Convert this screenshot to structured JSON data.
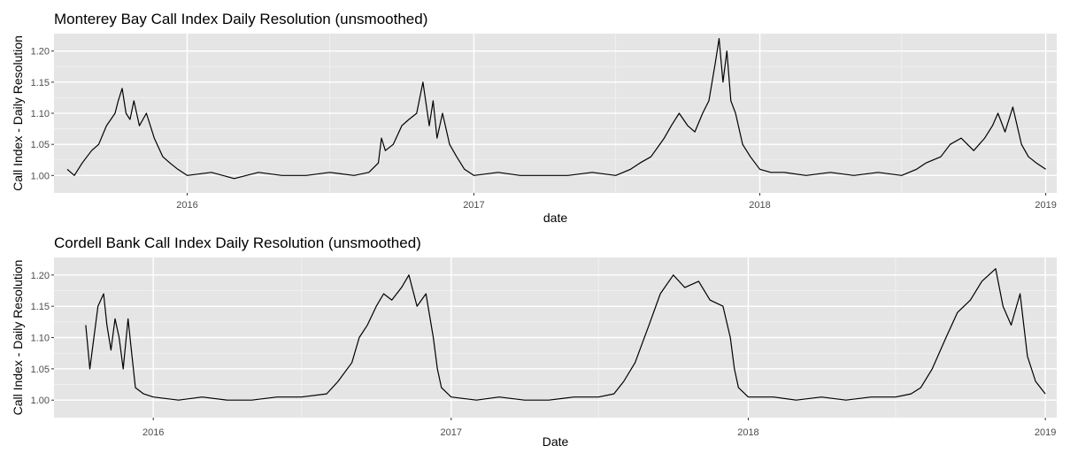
{
  "chart_data": [
    {
      "type": "line",
      "title": "Monterey Bay Call Index Daily Resolution (unsmoothed)",
      "xlabel": "date",
      "ylabel": "Call Index - Daily Resolution",
      "x_ticks": [
        "2016",
        "2017",
        "2018",
        "2019"
      ],
      "y_ticks": [
        "1.00",
        "1.05",
        "1.10",
        "1.15",
        "1.20"
      ],
      "xlim": [
        "2015-07-15",
        "2019-01-15"
      ],
      "ylim": [
        0.972,
        1.228
      ],
      "grid": true,
      "series": [
        {
          "x": [
            "2015-08-01",
            "2015-08-10",
            "2015-08-20",
            "2015-09-01",
            "2015-09-10",
            "2015-09-20",
            "2015-10-01",
            "2015-10-05",
            "2015-10-10",
            "2015-10-15",
            "2015-10-20",
            "2015-10-25",
            "2015-11-01",
            "2015-11-10",
            "2015-11-20",
            "2015-12-01",
            "2015-12-10",
            "2015-12-20",
            "2016-01-01",
            "2016-02-01",
            "2016-03-01",
            "2016-04-01",
            "2016-05-01",
            "2016-06-01",
            "2016-07-01",
            "2016-08-01",
            "2016-08-20",
            "2016-09-01",
            "2016-09-05",
            "2016-09-10",
            "2016-09-20",
            "2016-10-01",
            "2016-10-10",
            "2016-10-20",
            "2016-10-28",
            "2016-11-05",
            "2016-11-10",
            "2016-11-15",
            "2016-11-22",
            "2016-12-01",
            "2016-12-10",
            "2016-12-20",
            "2017-01-01",
            "2017-02-01",
            "2017-03-01",
            "2017-04-01",
            "2017-05-01",
            "2017-06-01",
            "2017-07-01",
            "2017-07-20",
            "2017-08-01",
            "2017-08-15",
            "2017-09-01",
            "2017-09-10",
            "2017-09-20",
            "2017-10-01",
            "2017-10-10",
            "2017-10-20",
            "2017-10-28",
            "2017-11-05",
            "2017-11-10",
            "2017-11-15",
            "2017-11-20",
            "2017-11-25",
            "2017-12-01",
            "2017-12-10",
            "2017-12-20",
            "2018-01-01",
            "2018-01-15",
            "2018-02-01",
            "2018-03-01",
            "2018-04-01",
            "2018-05-01",
            "2018-06-01",
            "2018-07-01",
            "2018-07-20",
            "2018-08-01",
            "2018-08-20",
            "2018-09-01",
            "2018-09-15",
            "2018-10-01",
            "2018-10-15",
            "2018-10-25",
            "2018-11-01",
            "2018-11-10",
            "2018-11-20",
            "2018-12-01",
            "2018-12-10",
            "2018-12-20",
            "2019-01-01"
          ],
          "y": [
            1.01,
            1.0,
            1.02,
            1.04,
            1.05,
            1.08,
            1.1,
            1.12,
            1.14,
            1.1,
            1.09,
            1.12,
            1.08,
            1.1,
            1.06,
            1.03,
            1.02,
            1.01,
            1.0,
            1.005,
            0.995,
            1.005,
            1.0,
            1.0,
            1.005,
            1.0,
            1.005,
            1.02,
            1.06,
            1.04,
            1.05,
            1.08,
            1.09,
            1.1,
            1.15,
            1.08,
            1.12,
            1.06,
            1.1,
            1.05,
            1.03,
            1.01,
            1.0,
            1.005,
            1.0,
            1.0,
            1.0,
            1.005,
            1.0,
            1.01,
            1.02,
            1.03,
            1.06,
            1.08,
            1.1,
            1.08,
            1.07,
            1.1,
            1.12,
            1.18,
            1.22,
            1.15,
            1.2,
            1.12,
            1.1,
            1.05,
            1.03,
            1.01,
            1.005,
            1.005,
            1.0,
            1.005,
            1.0,
            1.005,
            1.0,
            1.01,
            1.02,
            1.03,
            1.05,
            1.06,
            1.04,
            1.06,
            1.08,
            1.1,
            1.07,
            1.11,
            1.05,
            1.03,
            1.02,
            1.01
          ]
        }
      ]
    },
    {
      "type": "line",
      "title": "Cordell Bank Call Index Daily Resolution (unsmoothed)",
      "xlabel": "Date",
      "ylabel": "Call Index - Daily Resolution",
      "x_ticks": [
        "2016",
        "2017",
        "2018",
        "2019"
      ],
      "y_ticks": [
        "1.00",
        "1.05",
        "1.10",
        "1.15",
        "1.20"
      ],
      "xlim": [
        "2015-09-01",
        "2019-01-15"
      ],
      "ylim": [
        0.972,
        1.228
      ],
      "grid": true,
      "series": [
        {
          "x": [
            "2015-10-10",
            "2015-10-15",
            "2015-10-20",
            "2015-10-25",
            "2015-11-01",
            "2015-11-05",
            "2015-11-10",
            "2015-11-15",
            "2015-11-20",
            "2015-11-25",
            "2015-12-01",
            "2015-12-05",
            "2015-12-10",
            "2015-12-20",
            "2016-01-01",
            "2016-02-01",
            "2016-03-01",
            "2016-04-01",
            "2016-05-01",
            "2016-06-01",
            "2016-07-01",
            "2016-08-01",
            "2016-08-15",
            "2016-09-01",
            "2016-09-10",
            "2016-09-20",
            "2016-10-01",
            "2016-10-10",
            "2016-10-20",
            "2016-11-01",
            "2016-11-10",
            "2016-11-20",
            "2016-12-01",
            "2016-12-10",
            "2016-12-15",
            "2016-12-20",
            "2017-01-01",
            "2017-02-01",
            "2017-03-01",
            "2017-04-01",
            "2017-05-01",
            "2017-06-01",
            "2017-07-01",
            "2017-07-20",
            "2017-08-01",
            "2017-08-15",
            "2017-09-01",
            "2017-09-15",
            "2017-10-01",
            "2017-10-15",
            "2017-11-01",
            "2017-11-15",
            "2017-12-01",
            "2017-12-10",
            "2017-12-15",
            "2017-12-20",
            "2018-01-01",
            "2018-02-01",
            "2018-03-01",
            "2018-04-01",
            "2018-05-01",
            "2018-06-01",
            "2018-07-01",
            "2018-07-20",
            "2018-08-01",
            "2018-08-15",
            "2018-09-01",
            "2018-09-15",
            "2018-10-01",
            "2018-10-15",
            "2018-11-01",
            "2018-11-10",
            "2018-11-20",
            "2018-12-01",
            "2018-12-10",
            "2018-12-20",
            "2019-01-01"
          ],
          "y": [
            1.12,
            1.05,
            1.1,
            1.15,
            1.17,
            1.12,
            1.08,
            1.13,
            1.1,
            1.05,
            1.13,
            1.08,
            1.02,
            1.01,
            1.005,
            1.0,
            1.005,
            1.0,
            1.0,
            1.005,
            1.005,
            1.01,
            1.03,
            1.06,
            1.1,
            1.12,
            1.15,
            1.17,
            1.16,
            1.18,
            1.2,
            1.15,
            1.17,
            1.1,
            1.05,
            1.02,
            1.005,
            1.0,
            1.005,
            1.0,
            1.0,
            1.005,
            1.005,
            1.01,
            1.03,
            1.06,
            1.12,
            1.17,
            1.2,
            1.18,
            1.19,
            1.16,
            1.15,
            1.1,
            1.05,
            1.02,
            1.005,
            1.005,
            1.0,
            1.005,
            1.0,
            1.005,
            1.005,
            1.01,
            1.02,
            1.05,
            1.1,
            1.14,
            1.16,
            1.19,
            1.21,
            1.15,
            1.12,
            1.17,
            1.07,
            1.03,
            1.01
          ]
        }
      ]
    }
  ]
}
